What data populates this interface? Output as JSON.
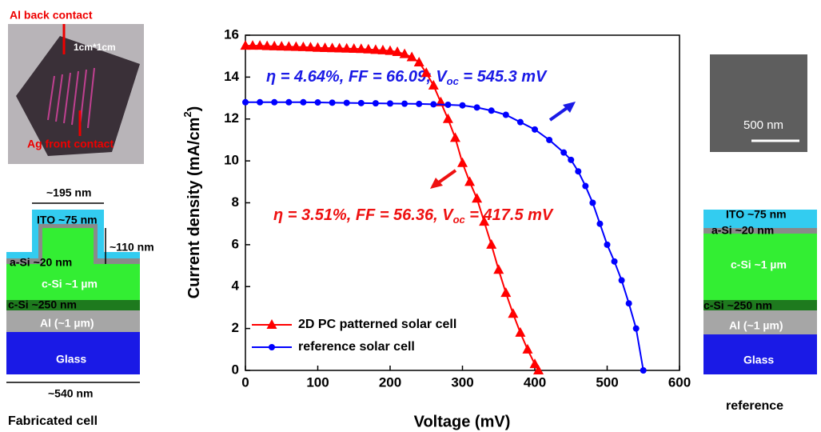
{
  "chart_data": {
    "type": "line",
    "xlabel": "Voltage (mV)",
    "ylabel": [
      "Current density (mA/cm",
      "2",
      ")"
    ],
    "xlim": [
      0,
      600
    ],
    "xticks": [
      0,
      100,
      200,
      300,
      400,
      500,
      600
    ],
    "ylim": [
      0,
      16
    ],
    "yticks": [
      0,
      2,
      4,
      6,
      8,
      10,
      12,
      14,
      16
    ],
    "legend": "lower left",
    "annotations": [
      [
        "η = 4.64%, FF = 66.09; V",
        "oc",
        " = 545.3 mV"
      ],
      [
        "η = 3.51%, FF = 56.36, V",
        "oc",
        " = 417.5 mV"
      ]
    ],
    "series": [
      {
        "name": "2D PC patterned solar cell",
        "color": "#ff0000",
        "marker": "triangle",
        "x": [
          0,
          10,
          20,
          30,
          40,
          50,
          60,
          70,
          80,
          90,
          100,
          110,
          120,
          130,
          140,
          150,
          160,
          170,
          180,
          190,
          200,
          210,
          220,
          230,
          240,
          250,
          260,
          270,
          280,
          290,
          300,
          310,
          320,
          330,
          340,
          350,
          360,
          370,
          380,
          390,
          400,
          405
        ],
        "values": [
          15.5,
          15.5,
          15.5,
          15.48,
          15.47,
          15.46,
          15.45,
          15.44,
          15.43,
          15.42,
          15.4,
          15.39,
          15.38,
          15.37,
          15.36,
          15.35,
          15.34,
          15.32,
          15.3,
          15.28,
          15.25,
          15.2,
          15.1,
          14.95,
          14.7,
          14.2,
          13.6,
          12.8,
          12.0,
          11.1,
          9.9,
          9.0,
          8.2,
          7.1,
          6.0,
          4.8,
          3.7,
          2.7,
          1.8,
          1.0,
          0.3,
          0
        ]
      },
      {
        "name": "reference solar cell",
        "color": "#0000ff",
        "marker": "circle",
        "x": [
          0,
          20,
          40,
          60,
          80,
          100,
          120,
          140,
          160,
          180,
          200,
          220,
          240,
          260,
          280,
          300,
          320,
          340,
          360,
          380,
          400,
          420,
          440,
          450,
          460,
          470,
          480,
          490,
          500,
          510,
          520,
          530,
          540,
          550
        ],
        "values": [
          12.8,
          12.8,
          12.8,
          12.8,
          12.8,
          12.79,
          12.78,
          12.77,
          12.76,
          12.75,
          12.74,
          12.73,
          12.72,
          12.7,
          12.68,
          12.65,
          12.55,
          12.4,
          12.2,
          11.85,
          11.5,
          11.0,
          10.4,
          10.05,
          9.5,
          8.8,
          8.0,
          7.0,
          6.0,
          5.2,
          4.3,
          3.2,
          2.0,
          0
        ]
      }
    ]
  },
  "left_panel": {
    "photo": {
      "top_label": "Al back contact",
      "size": "1cm*1cm",
      "bottom_label": "Ag front contact"
    },
    "diagram": {
      "width_top": "~195 nm",
      "ito": "ITO ~75 nm",
      "height": "~110 nm",
      "a_si": "a-Si ~20 nm",
      "c_si": "c-Si ~1 µm",
      "c_si_bottom": "c-Si ~250 nm",
      "al": "Al (~1 µm)",
      "glass": "Glass",
      "width_bottom": "~540 nm"
    },
    "caption": "Fabricated cell"
  },
  "right_panel": {
    "scale_bar": "500 nm",
    "diagram": {
      "ito": "ITO ~75 nm",
      "a_si": "a-Si ~20 nm",
      "c_si": "c-Si ~1 µm",
      "c_si_bottom": "c-Si ~250 nm",
      "al": "Al (~1 µm)",
      "glass": "Glass"
    },
    "caption": "reference"
  }
}
